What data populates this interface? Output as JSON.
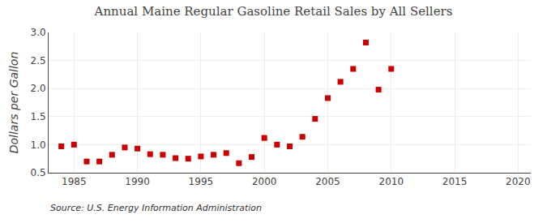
{
  "chart_data": {
    "type": "scatter",
    "title": "Annual Maine Regular Gasoline Retail Sales by All Sellers",
    "ylabel": "Dollars per Gallon",
    "annotations": [
      "Source: U.S. Energy Information Administration"
    ],
    "x": [
      1984,
      1985,
      1986,
      1987,
      1988,
      1989,
      1990,
      1991,
      1992,
      1993,
      1994,
      1995,
      1996,
      1997,
      1998,
      1999,
      2000,
      2001,
      2002,
      2003,
      2004,
      2005,
      2006,
      2007,
      2008,
      2009,
      2010
    ],
    "values": [
      0.97,
      1.0,
      0.7,
      0.7,
      0.82,
      0.95,
      0.93,
      0.83,
      0.82,
      0.76,
      0.75,
      0.79,
      0.82,
      0.85,
      0.67,
      0.78,
      1.12,
      1.0,
      0.97,
      1.14,
      1.46,
      1.83,
      2.12,
      2.35,
      2.82,
      1.98,
      2.35
    ],
    "color": "#cc0000",
    "marker": "square",
    "xlim": [
      1983,
      2021
    ],
    "ylim": [
      0.5,
      3.0
    ],
    "xticks": [
      1985,
      1990,
      1995,
      2000,
      2005,
      2010,
      2015,
      2020
    ],
    "yticks": [
      0.5,
      {
        "value": 1.0,
        "label": "1.0"
      },
      1.5,
      {
        "value": 2.0,
        "label": "2.0"
      },
      2.5,
      {
        "value": 3.0,
        "label": "3.0"
      }
    ],
    "grid": true
  }
}
